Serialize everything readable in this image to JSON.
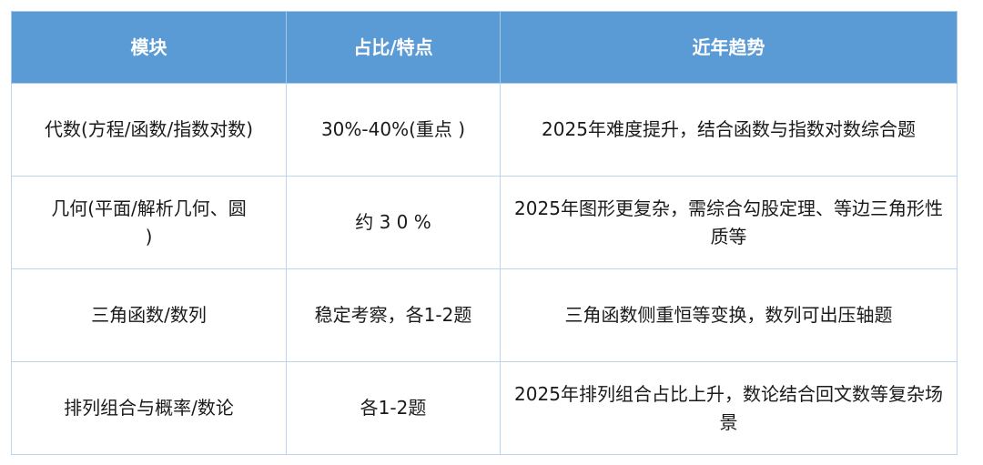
{
  "table": {
    "headers": [
      "模块",
      "占比/特点",
      "近年趋势"
    ],
    "rows": [
      [
        "代数(方程/函数/指数对数)",
        "30%-40%(重点 )",
        "2025年难度提升，结合函数与指数对数综合题"
      ],
      [
        "几何(平面/解析几何、圆 )",
        "约 3 0 %",
        "2025年图形更复杂，需综合勾股定理、等边三角形性质等"
      ],
      [
        "三角函数/数列",
        "稳定考察，各1-2题",
        "三角函数侧重恒等变换，数列可出压轴题"
      ],
      [
        "排列组合与概率/数论",
        "各1-2题",
        "2025年排列组合占比上升，数论结合回文数等复杂场景"
      ]
    ]
  },
  "colors": {
    "header_bg": "#5b9bd5",
    "border": "#bcd5ee"
  }
}
